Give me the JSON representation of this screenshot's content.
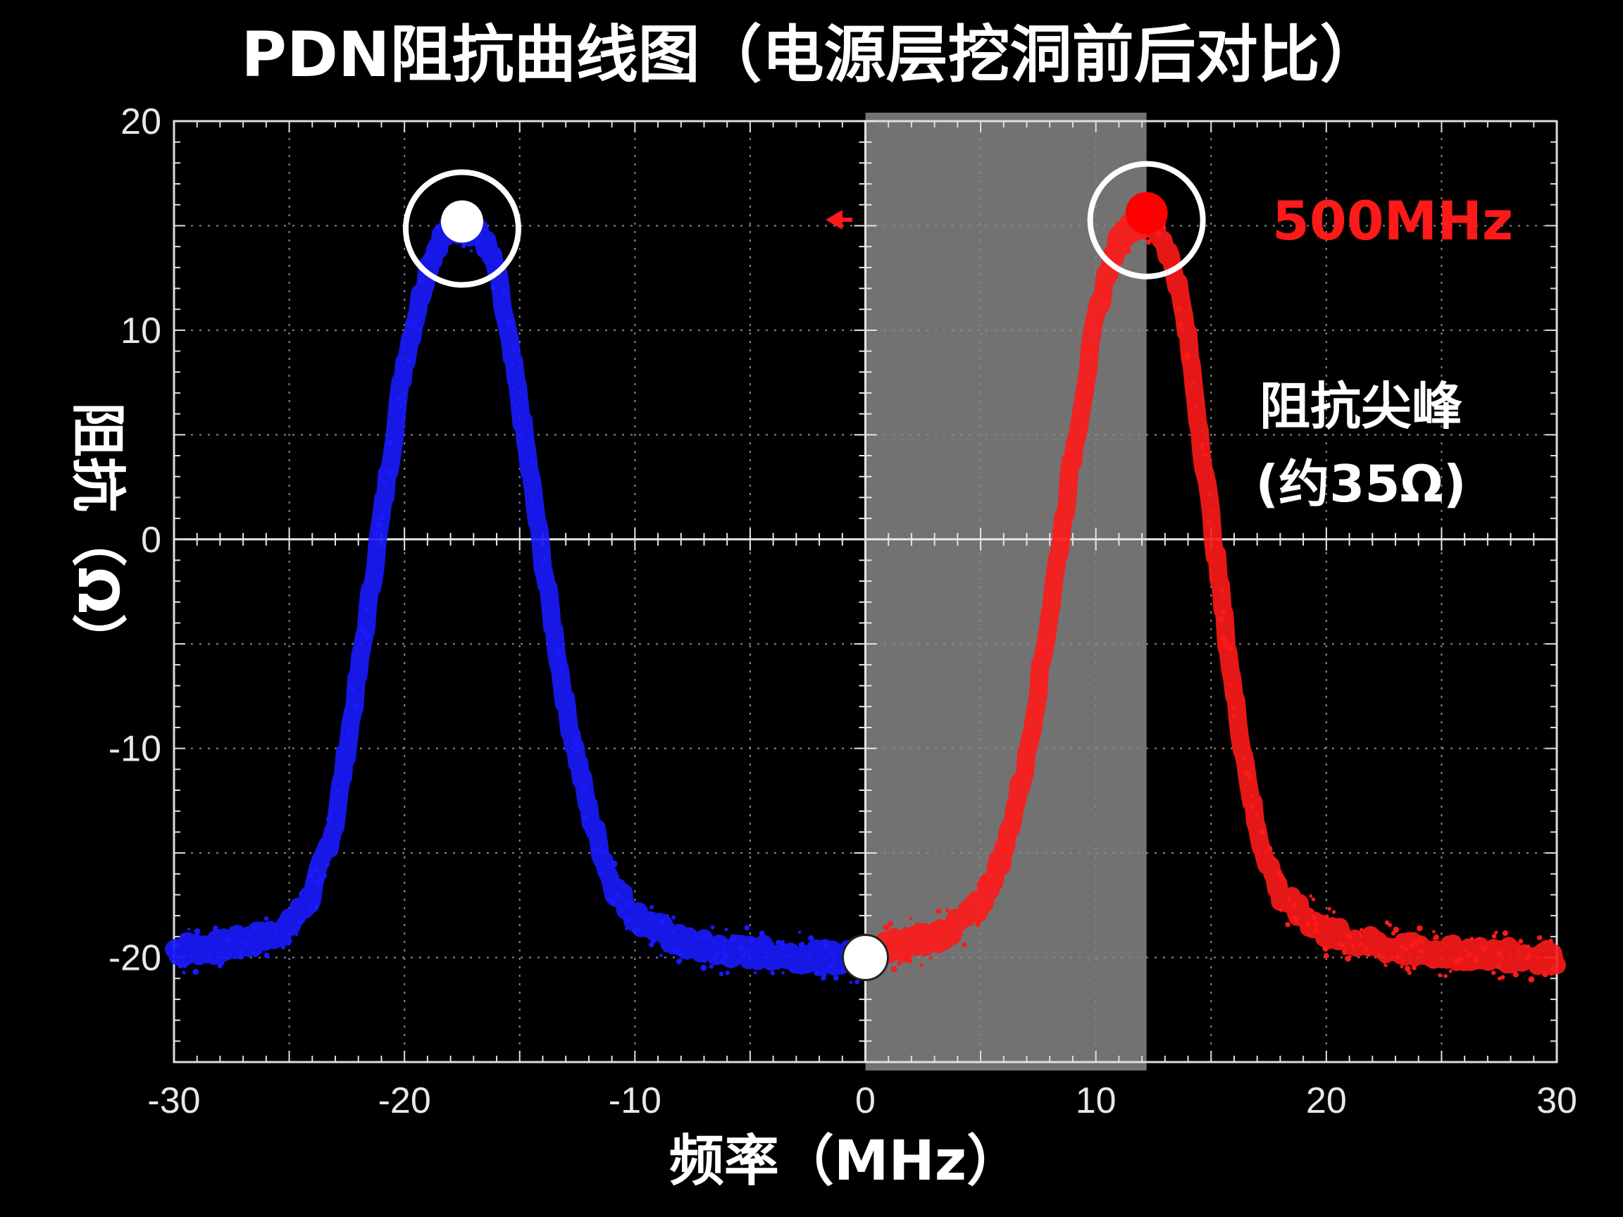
{
  "chart_data": {
    "type": "line",
    "title": "PDN阻抗曲线图（电源层挖洞前后对比）",
    "xlabel": "频率（MHz）",
    "ylabel": "阻抗（Ω）",
    "xlim": [
      -30,
      30
    ],
    "ylim": [
      -25,
      20
    ],
    "x_ticks": [
      -30,
      -20,
      -10,
      0,
      10,
      20,
      30
    ],
    "x_tick_labels": [
      "-30",
      "-20",
      "-10",
      "0",
      "10",
      "20",
      "30"
    ],
    "y_ticks": [
      20,
      10,
      0,
      -10,
      -20
    ],
    "y_tick_labels": [
      "20",
      "10",
      "0",
      "-10",
      "-20"
    ],
    "grid": true,
    "shaded_region": {
      "x_start": 0,
      "x_end": 12.2
    },
    "series": [
      {
        "color": "#1a1aff",
        "x": [
          -30,
          -28,
          -26,
          -25,
          -24,
          -23,
          -22,
          -21,
          -20,
          -19,
          -18.5,
          -18,
          -17.5,
          -17,
          -16.5,
          -16,
          -15,
          -14,
          -13,
          -12,
          -11,
          -10,
          -8,
          -6,
          -4,
          -2,
          0
        ],
        "y": [
          -19.6,
          -19.5,
          -19.0,
          -18.5,
          -17.0,
          -13.5,
          -6.5,
          1.0,
          8.5,
          13.0,
          14.3,
          14.8,
          15.0,
          14.8,
          14.2,
          12.8,
          6.5,
          -1.0,
          -8.0,
          -13.0,
          -16.5,
          -18.0,
          -19.3,
          -19.7,
          -19.8,
          -20.0,
          -20.0
        ]
      },
      {
        "color": "#ff1a1a",
        "x": [
          0,
          1,
          2,
          3,
          4,
          5,
          6,
          7,
          8,
          9,
          10,
          10.5,
          11,
          11.5,
          12,
          12.5,
          13,
          13.5,
          14,
          15,
          16,
          17,
          18,
          19,
          20,
          22,
          24,
          26,
          28,
          30
        ],
        "y": [
          -20.0,
          -19.5,
          -19.3,
          -19.0,
          -18.5,
          -17.5,
          -15.0,
          -10.5,
          -3.5,
          4.0,
          10.5,
          12.8,
          14.3,
          15.0,
          15.3,
          15.0,
          14.2,
          12.5,
          9.5,
          1.0,
          -7.5,
          -14.0,
          -17.0,
          -18.0,
          -18.8,
          -19.4,
          -19.7,
          -19.8,
          -19.9,
          -20.0
        ]
      }
    ],
    "markers": [
      {
        "x": -17.5,
        "y": 15.2,
        "color": "#ffffff",
        "circled": true
      },
      {
        "x": 12.2,
        "y": 15.6,
        "color": "#ff0000",
        "circled": true
      },
      {
        "x": 0,
        "y": -20.0,
        "color": "#ffffff",
        "circled": false
      }
    ],
    "annotations": [
      {
        "text": "500MHz",
        "color": "#ff1a1a"
      },
      {
        "text": "阻抗尖峰",
        "color": "#ffffff"
      },
      {
        "text": "(约35Ω)",
        "color": "#ffffff"
      }
    ]
  }
}
